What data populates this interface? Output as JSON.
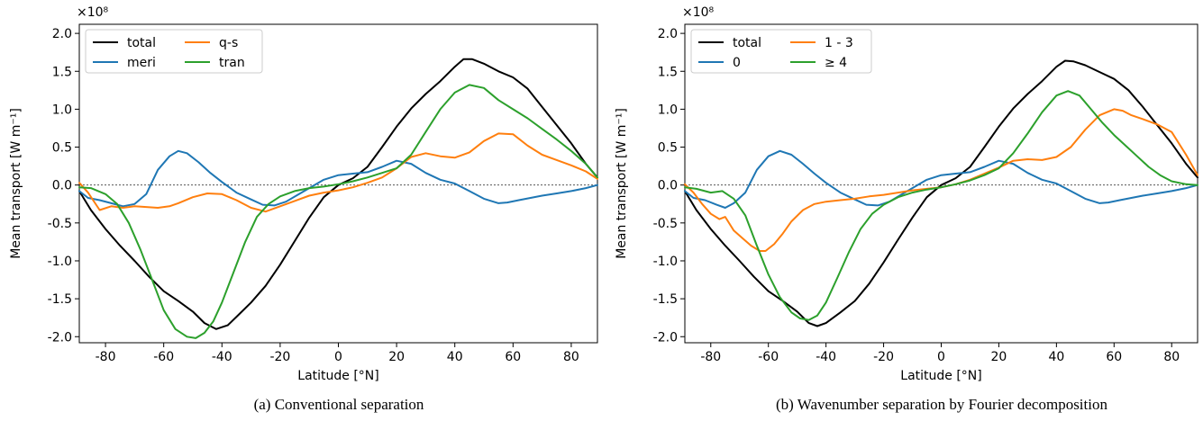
{
  "chart_data": [
    {
      "type": "line",
      "caption": "(a)  Conventional separation",
      "xlabel": "Latitude [°N]",
      "ylabel": "Mean transport [W m⁻¹]",
      "multiplier": "×10⁸",
      "xlim": [
        -89,
        89
      ],
      "ylim": [
        -2.08,
        2.12
      ],
      "xticks": [
        "-80",
        "-60",
        "-40",
        "-20",
        "0",
        "20",
        "40",
        "60",
        "80"
      ],
      "yticks": [
        "2.0",
        "1.5",
        "1.0",
        "0.5",
        "0.0",
        "-0.5",
        "-1.0",
        "-1.5",
        "-2.0"
      ],
      "zero_line": true,
      "legend_position": "top-left",
      "series": [
        {
          "name": "total",
          "color": "#000000",
          "x": [
            -89,
            -85,
            -80,
            -75,
            -70,
            -65,
            -60,
            -55,
            -50,
            -46,
            -42,
            -38,
            -34,
            -30,
            -25,
            -20,
            -15,
            -10,
            -5,
            0,
            5,
            10,
            15,
            20,
            25,
            30,
            35,
            40,
            43,
            46,
            50,
            55,
            60,
            65,
            70,
            75,
            80,
            85,
            89
          ],
          "y": [
            -0.08,
            -0.33,
            -0.58,
            -0.8,
            -1.0,
            -1.21,
            -1.4,
            -1.53,
            -1.67,
            -1.82,
            -1.9,
            -1.85,
            -1.7,
            -1.55,
            -1.33,
            -1.05,
            -0.74,
            -0.43,
            -0.16,
            0.0,
            0.09,
            0.24,
            0.5,
            0.77,
            1.01,
            1.2,
            1.37,
            1.56,
            1.66,
            1.66,
            1.6,
            1.5,
            1.42,
            1.27,
            1.03,
            0.79,
            0.55,
            0.28,
            0.1
          ]
        },
        {
          "name": "meri",
          "color": "#1f77b4",
          "x": [
            -89,
            -86,
            -82,
            -78,
            -74,
            -70,
            -66,
            -62,
            -58,
            -55,
            -52,
            -48,
            -44,
            -40,
            -35,
            -30,
            -26,
            -22,
            -18,
            -14,
            -10,
            -5,
            0,
            5,
            10,
            15,
            20,
            25,
            30,
            35,
            40,
            45,
            50,
            55,
            58,
            62,
            66,
            70,
            75,
            80,
            85,
            89
          ],
          "y": [
            -0.08,
            -0.17,
            -0.2,
            -0.24,
            -0.28,
            -0.25,
            -0.12,
            0.2,
            0.38,
            0.45,
            0.42,
            0.3,
            0.16,
            0.04,
            -0.1,
            -0.19,
            -0.26,
            -0.27,
            -0.22,
            -0.13,
            -0.04,
            0.07,
            0.13,
            0.15,
            0.17,
            0.24,
            0.32,
            0.28,
            0.16,
            0.07,
            0.02,
            -0.08,
            -0.18,
            -0.24,
            -0.23,
            -0.2,
            -0.17,
            -0.14,
            -0.11,
            -0.08,
            -0.04,
            0.0
          ]
        },
        {
          "name": "q-s",
          "color": "#ff7f0e",
          "x": [
            -89,
            -86,
            -82,
            -78,
            -74,
            -70,
            -66,
            -62,
            -58,
            -55,
            -50,
            -45,
            -40,
            -35,
            -30,
            -25,
            -20,
            -15,
            -10,
            -5,
            0,
            5,
            10,
            15,
            20,
            25,
            30,
            35,
            40,
            45,
            50,
            55,
            60,
            65,
            70,
            75,
            80,
            85,
            89
          ],
          "y": [
            0.03,
            -0.1,
            -0.33,
            -0.28,
            -0.3,
            -0.28,
            -0.29,
            -0.3,
            -0.28,
            -0.24,
            -0.16,
            -0.11,
            -0.12,
            -0.2,
            -0.3,
            -0.35,
            -0.28,
            -0.21,
            -0.14,
            -0.1,
            -0.07,
            -0.03,
            0.03,
            0.1,
            0.22,
            0.37,
            0.42,
            0.38,
            0.36,
            0.43,
            0.58,
            0.68,
            0.67,
            0.52,
            0.4,
            0.33,
            0.26,
            0.18,
            0.08
          ]
        },
        {
          "name": "tran",
          "color": "#2ca02c",
          "x": [
            -89,
            -85,
            -80,
            -76,
            -72,
            -68,
            -64,
            -60,
            -56,
            -52,
            -49,
            -46,
            -43,
            -40,
            -36,
            -32,
            -28,
            -24,
            -20,
            -15,
            -10,
            -5,
            0,
            5,
            10,
            15,
            20,
            25,
            30,
            35,
            40,
            45,
            50,
            55,
            60,
            65,
            70,
            75,
            80,
            85,
            89
          ],
          "y": [
            -0.03,
            -0.04,
            -0.12,
            -0.25,
            -0.5,
            -0.85,
            -1.25,
            -1.65,
            -1.9,
            -2.0,
            -2.02,
            -1.95,
            -1.8,
            -1.55,
            -1.15,
            -0.75,
            -0.42,
            -0.25,
            -0.15,
            -0.08,
            -0.04,
            -0.02,
            0.01,
            0.05,
            0.1,
            0.16,
            0.22,
            0.4,
            0.7,
            1.0,
            1.22,
            1.32,
            1.28,
            1.12,
            1.0,
            0.88,
            0.74,
            0.6,
            0.45,
            0.28,
            0.1
          ]
        }
      ]
    },
    {
      "type": "line",
      "caption": "(b)  Wavenumber separation by Fourier decomposition",
      "xlabel": "Latitude [°N]",
      "ylabel": "Mean transport [W m⁻¹]",
      "multiplier": "×10⁸",
      "xlim": [
        -89,
        89
      ],
      "ylim": [
        -2.08,
        2.12
      ],
      "xticks": [
        "-80",
        "-60",
        "-40",
        "-20",
        "0",
        "20",
        "40",
        "60",
        "80"
      ],
      "yticks": [
        "2.0",
        "1.5",
        "1.0",
        "0.5",
        "0.0",
        "-0.5",
        "-1.0",
        "-1.5",
        "-2.0"
      ],
      "zero_line": true,
      "legend_position": "top-left",
      "series": [
        {
          "name": "total",
          "color": "#000000",
          "x": [
            -89,
            -85,
            -80,
            -75,
            -70,
            -65,
            -60,
            -55,
            -50,
            -46,
            -43,
            -40,
            -35,
            -30,
            -25,
            -20,
            -15,
            -10,
            -5,
            0,
            5,
            10,
            15,
            20,
            25,
            30,
            35,
            40,
            43,
            46,
            50,
            55,
            60,
            65,
            70,
            75,
            80,
            85,
            89
          ],
          "y": [
            -0.08,
            -0.33,
            -0.58,
            -0.8,
            -1.0,
            -1.21,
            -1.4,
            -1.53,
            -1.67,
            -1.82,
            -1.86,
            -1.82,
            -1.68,
            -1.53,
            -1.3,
            -1.02,
            -0.72,
            -0.43,
            -0.16,
            0.0,
            0.09,
            0.24,
            0.5,
            0.77,
            1.01,
            1.2,
            1.37,
            1.56,
            1.64,
            1.63,
            1.58,
            1.49,
            1.4,
            1.25,
            1.03,
            0.79,
            0.55,
            0.28,
            0.1
          ]
        },
        {
          "name": "0",
          "color": "#1f77b4",
          "x": [
            -89,
            -86,
            -82,
            -78,
            -75,
            -72,
            -68,
            -64,
            -60,
            -56,
            -52,
            -48,
            -44,
            -40,
            -35,
            -30,
            -26,
            -22,
            -18,
            -14,
            -10,
            -5,
            0,
            5,
            10,
            15,
            20,
            25,
            30,
            35,
            40,
            45,
            50,
            55,
            58,
            62,
            66,
            70,
            75,
            80,
            85,
            89
          ],
          "y": [
            -0.08,
            -0.17,
            -0.2,
            -0.26,
            -0.3,
            -0.24,
            -0.1,
            0.2,
            0.38,
            0.45,
            0.4,
            0.28,
            0.15,
            0.03,
            -0.1,
            -0.19,
            -0.26,
            -0.27,
            -0.22,
            -0.13,
            -0.04,
            0.07,
            0.13,
            0.15,
            0.17,
            0.24,
            0.32,
            0.28,
            0.16,
            0.07,
            0.02,
            -0.08,
            -0.18,
            -0.24,
            -0.23,
            -0.2,
            -0.17,
            -0.14,
            -0.11,
            -0.08,
            -0.04,
            0.0
          ]
        },
        {
          "name": "1 - 3",
          "color": "#ff7f0e",
          "x": [
            -89,
            -86,
            -83,
            -80,
            -77,
            -75,
            -72,
            -69,
            -66,
            -63,
            -61,
            -58,
            -55,
            -52,
            -48,
            -44,
            -40,
            -35,
            -30,
            -25,
            -20,
            -15,
            -10,
            -5,
            0,
            5,
            10,
            15,
            20,
            25,
            30,
            35,
            40,
            45,
            50,
            55,
            60,
            63,
            66,
            70,
            75,
            80,
            85,
            89
          ],
          "y": [
            0.01,
            -0.1,
            -0.25,
            -0.38,
            -0.45,
            -0.42,
            -0.6,
            -0.7,
            -0.8,
            -0.87,
            -0.87,
            -0.78,
            -0.64,
            -0.48,
            -0.33,
            -0.25,
            -0.22,
            -0.2,
            -0.18,
            -0.15,
            -0.13,
            -0.1,
            -0.07,
            -0.05,
            -0.03,
            0.01,
            0.07,
            0.15,
            0.23,
            0.32,
            0.34,
            0.33,
            0.37,
            0.5,
            0.73,
            0.92,
            1.0,
            0.98,
            0.92,
            0.87,
            0.8,
            0.7,
            0.4,
            0.13
          ]
        },
        {
          "name": "≥ 4",
          "color": "#2ca02c",
          "x": [
            -89,
            -85,
            -80,
            -76,
            -72,
            -68,
            -64,
            -60,
            -56,
            -52,
            -49,
            -46,
            -43,
            -40,
            -36,
            -32,
            -28,
            -24,
            -20,
            -15,
            -10,
            -5,
            0,
            5,
            10,
            15,
            20,
            25,
            30,
            35,
            40,
            44,
            48,
            52,
            56,
            60,
            64,
            68,
            72,
            76,
            80,
            85,
            89
          ],
          "y": [
            -0.03,
            -0.05,
            -0.1,
            -0.08,
            -0.18,
            -0.4,
            -0.8,
            -1.18,
            -1.48,
            -1.68,
            -1.76,
            -1.78,
            -1.72,
            -1.55,
            -1.22,
            -0.88,
            -0.58,
            -0.38,
            -0.26,
            -0.16,
            -0.1,
            -0.06,
            -0.03,
            0.01,
            0.06,
            0.13,
            0.22,
            0.42,
            0.68,
            0.96,
            1.18,
            1.24,
            1.18,
            1.0,
            0.82,
            0.66,
            0.52,
            0.38,
            0.24,
            0.13,
            0.05,
            0.01,
            0.0
          ]
        }
      ]
    }
  ]
}
